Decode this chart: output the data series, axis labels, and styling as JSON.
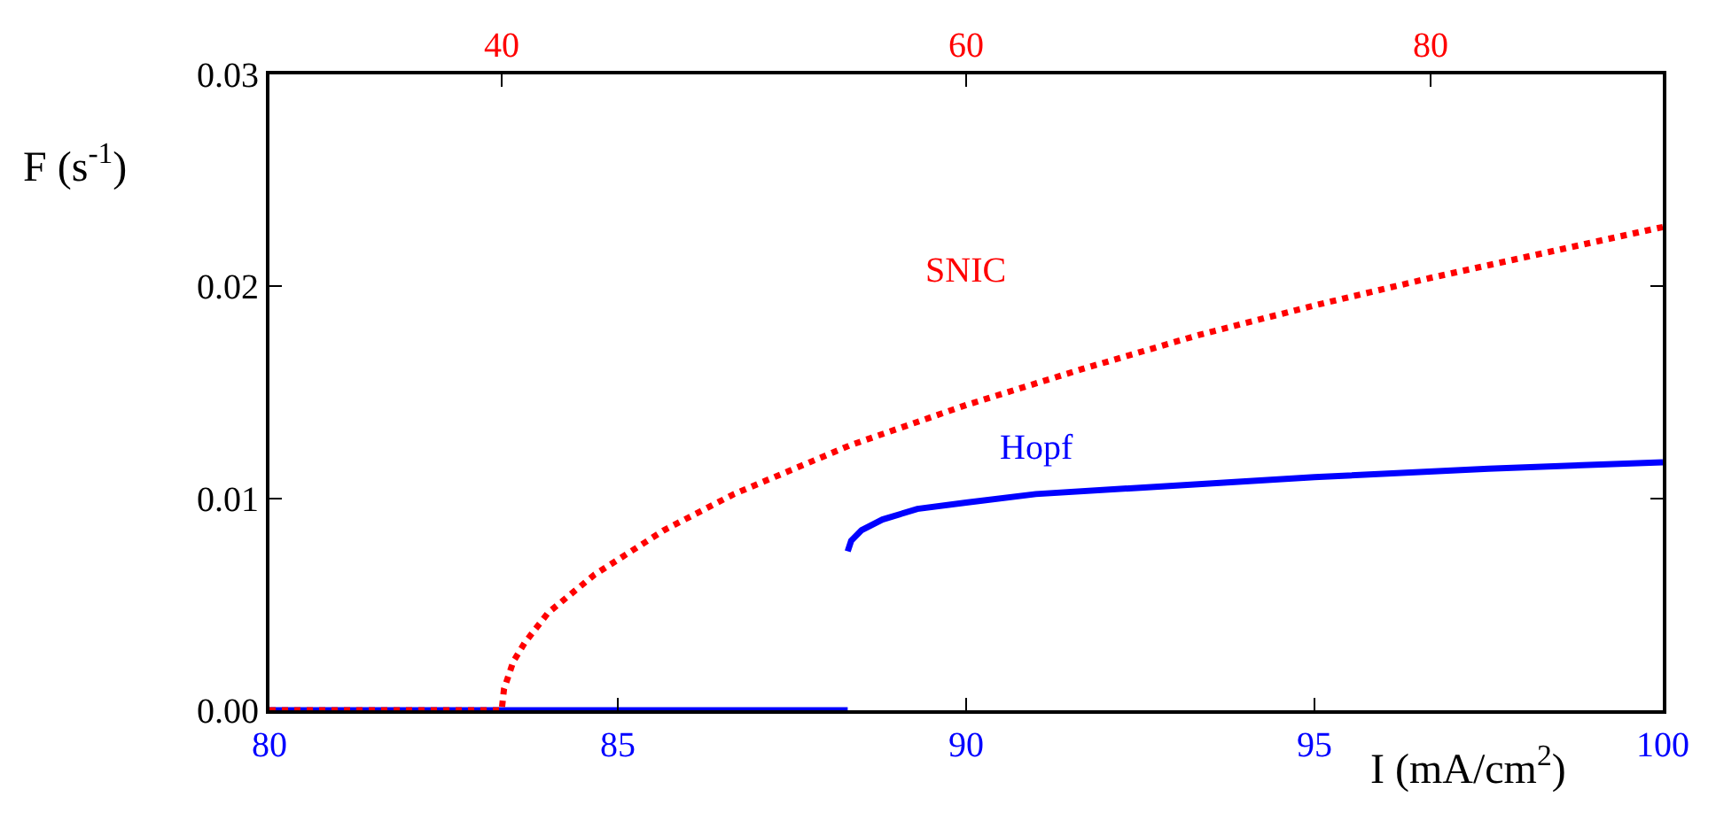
{
  "chart_data": {
    "type": "line",
    "xlabel": "I (mA/cm$^{2}$)",
    "ylabel": "F (s$^{-1}$)",
    "xlim": [
      80,
      100
    ],
    "xticks": [
      80,
      85,
      90,
      95,
      100
    ],
    "x2lim": [
      30,
      90
    ],
    "x2ticks": [
      40,
      60,
      80
    ],
    "ylim": [
      0,
      0.03
    ],
    "yticks": [
      {
        "value": 0,
        "label": "0.00"
      },
      {
        "value": 0.01,
        "label": "0.01"
      },
      {
        "value": 0.02,
        "label": "0.02"
      },
      {
        "value": 0.03,
        "label": "0.03"
      }
    ],
    "series": [
      {
        "name": "Hopf",
        "color": "#0000ff",
        "line_style": "solid",
        "x": [
          80,
          88.3,
          null,
          88.3,
          88.35,
          88.5,
          88.8,
          89.3,
          90,
          91,
          92.5,
          95,
          97.5,
          100
        ],
        "values": [
          0,
          0,
          null,
          0.0075,
          0.008,
          0.0085,
          0.009,
          0.0095,
          0.0098,
          0.0102,
          0.0105,
          0.011,
          0.0114,
          0.0117
        ]
      },
      {
        "name": "SNIC",
        "color": "#ff0000",
        "line_style": "dotted",
        "axis": "x2",
        "x": [
          30,
          40,
          40.1,
          40.5,
          41,
          42,
          44,
          47,
          50,
          55,
          60,
          65,
          70,
          75,
          80,
          85,
          90
        ],
        "values": [
          0,
          0,
          0.001,
          0.0023,
          0.0032,
          0.0046,
          0.0064,
          0.0085,
          0.0102,
          0.0125,
          0.0144,
          0.0161,
          0.0177,
          0.0191,
          0.0204,
          0.0216,
          0.0228
        ]
      }
    ]
  }
}
